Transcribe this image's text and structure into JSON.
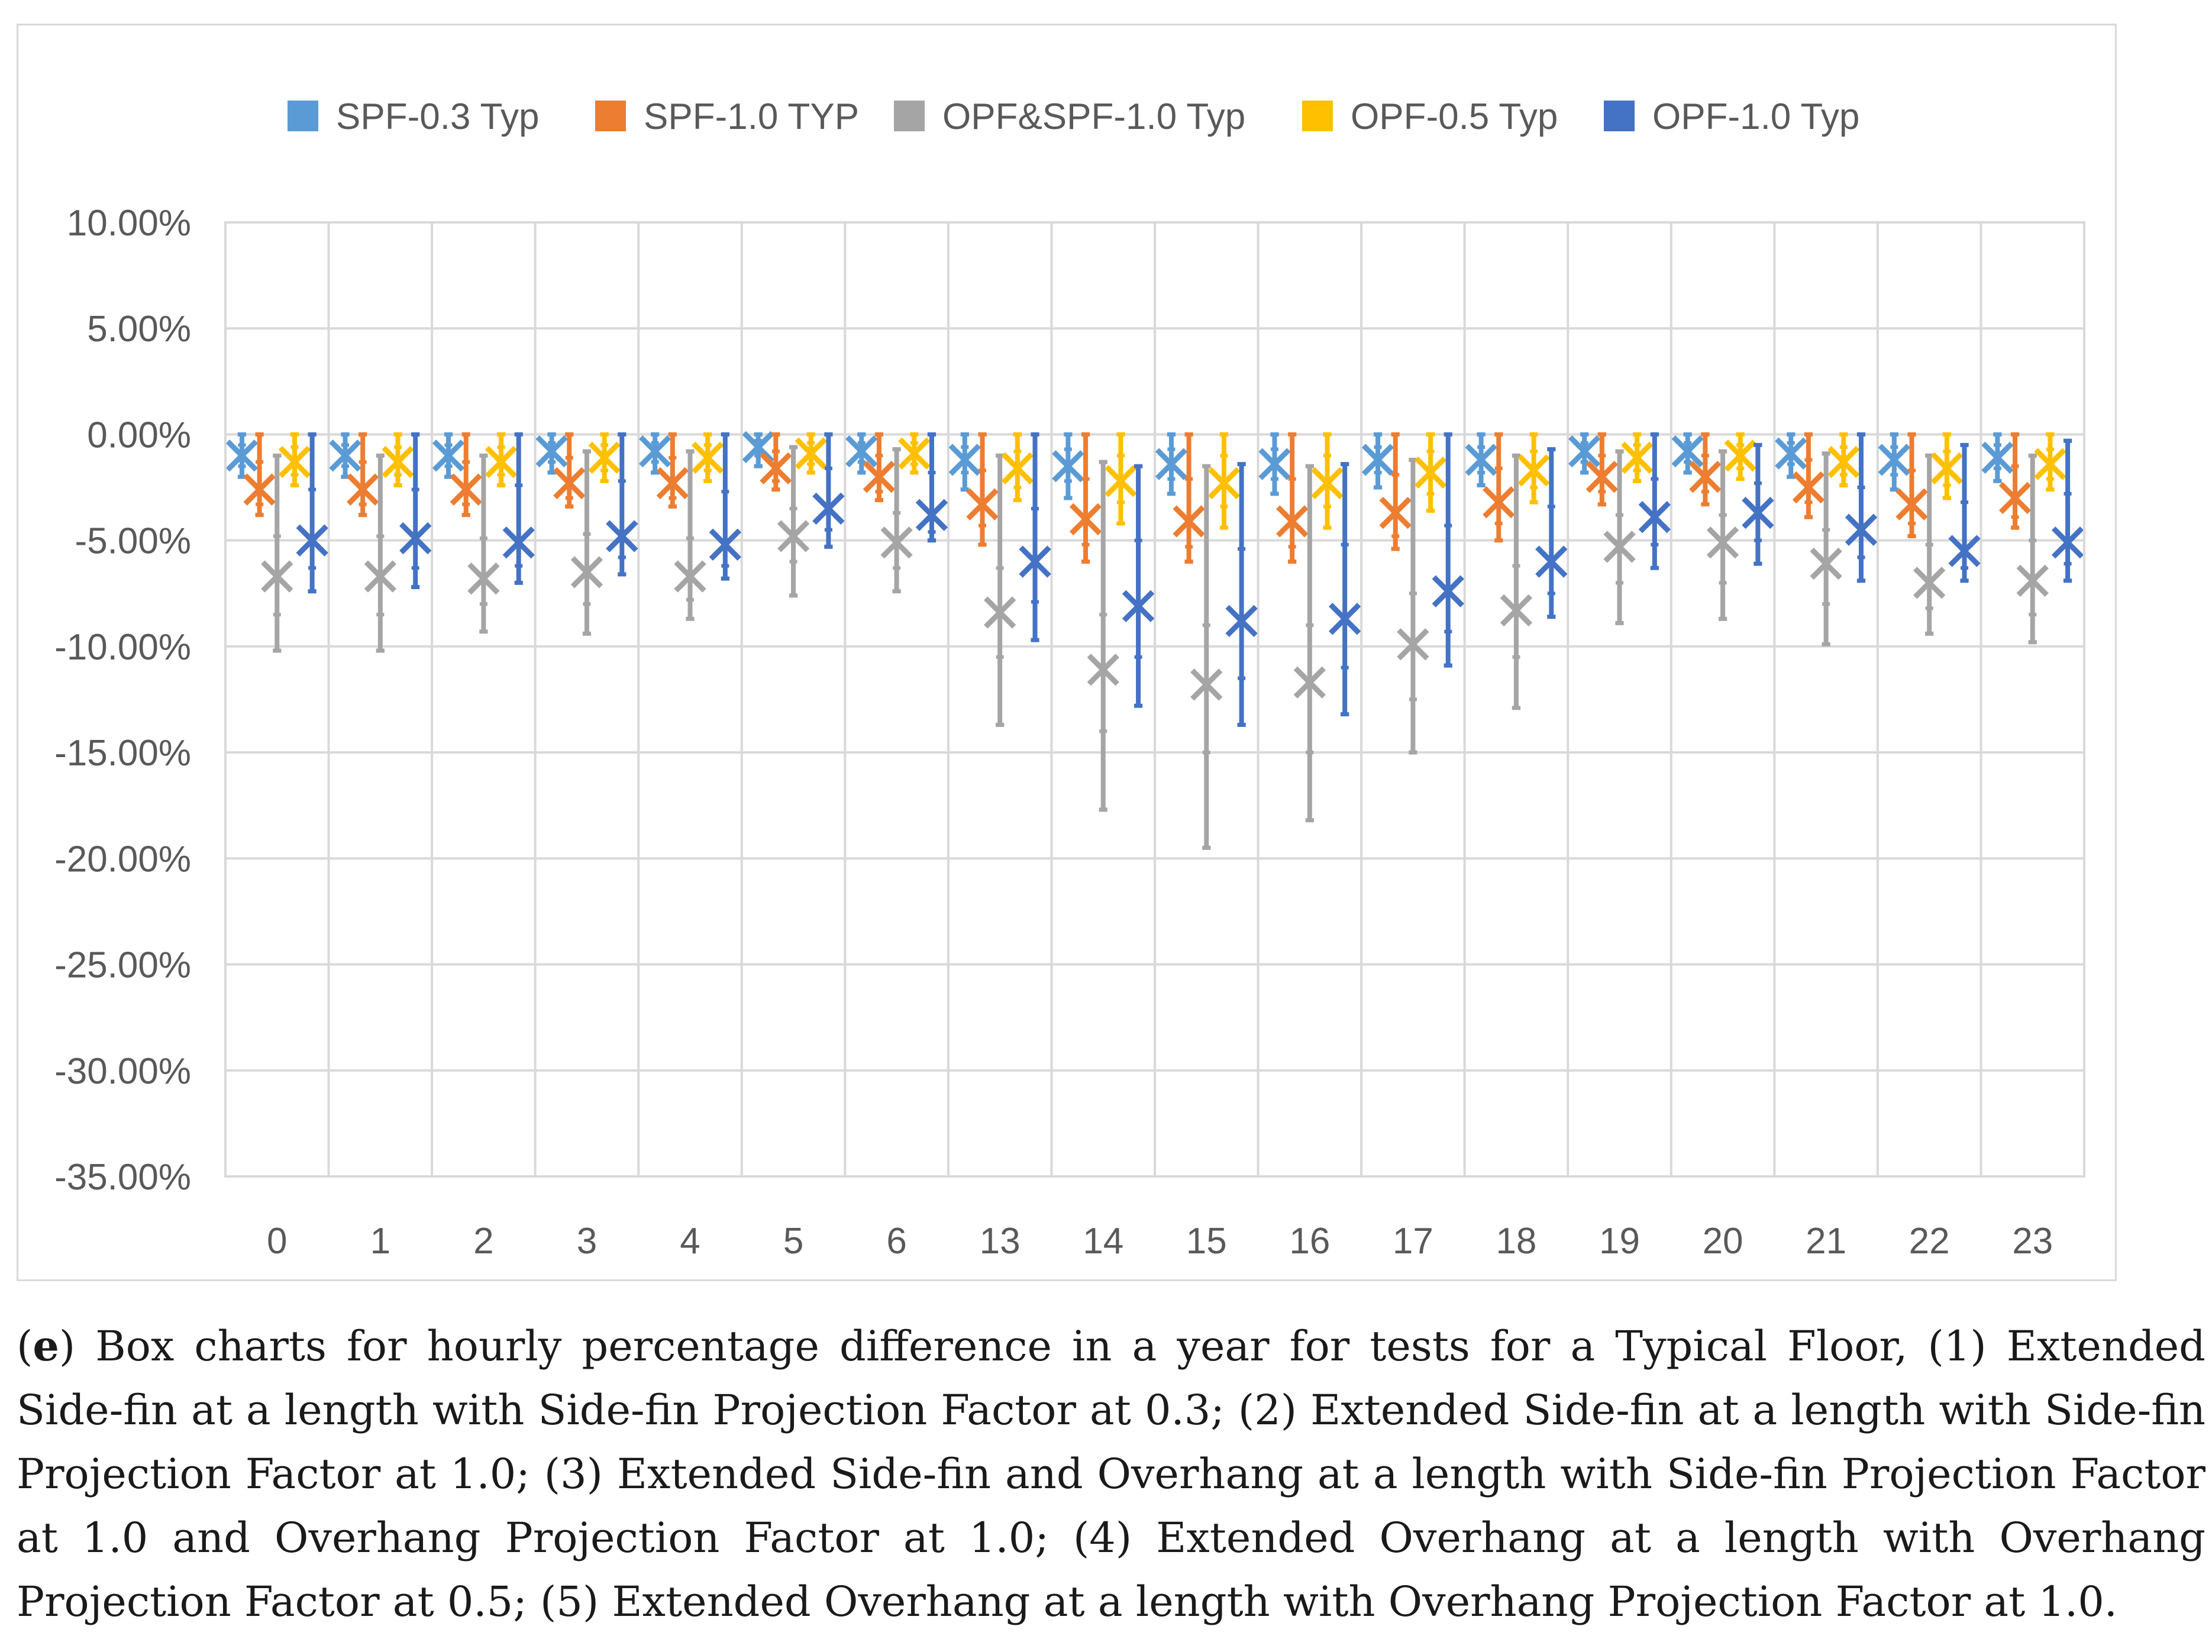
{
  "chart_data": {
    "type": "box",
    "title": "",
    "xlabel": "",
    "ylabel": "",
    "ylim": [
      -35,
      10
    ],
    "ytick_step": 5,
    "y_tick_labels": [
      "10.00%",
      "5.00%",
      "0.00%",
      "-5.00%",
      "-10.00%",
      "-15.00%",
      "-20.00%",
      "-25.00%",
      "-30.00%",
      "-35.00%"
    ],
    "grid": true,
    "legend_position": "top",
    "categories": [
      "0",
      "1",
      "2",
      "3",
      "4",
      "5",
      "6",
      "13",
      "14",
      "15",
      "16",
      "17",
      "18",
      "19",
      "20",
      "21",
      "22",
      "23"
    ],
    "series": [
      {
        "name": "SPF-0.3 Typ",
        "color": "#5b9bd5",
        "max": [
          0,
          0,
          0,
          0,
          0,
          0,
          0,
          0,
          0,
          0,
          0,
          0,
          0,
          0,
          0,
          0,
          0,
          0
        ],
        "q3": [
          -0.5,
          -0.5,
          -0.5,
          -0.4,
          -0.4,
          -0.3,
          -0.4,
          -0.6,
          -0.7,
          -0.7,
          -0.7,
          -0.6,
          -0.6,
          -0.4,
          -0.4,
          -0.4,
          -0.6,
          -0.5
        ],
        "median": [
          -1.0,
          -1.0,
          -1.0,
          -0.8,
          -0.8,
          -0.6,
          -0.8,
          -1.2,
          -1.4,
          -1.4,
          -1.4,
          -1.2,
          -1.2,
          -0.8,
          -0.8,
          -0.8,
          -1.2,
          -1.0
        ],
        "mean": [
          -1.0,
          -1.0,
          -1.0,
          -0.8,
          -0.8,
          -0.6,
          -0.8,
          -1.2,
          -1.5,
          -1.4,
          -1.4,
          -1.2,
          -1.2,
          -0.8,
          -0.8,
          -0.9,
          -1.2,
          -1.1
        ],
        "q1": [
          -1.5,
          -1.5,
          -1.5,
          -1.3,
          -1.3,
          -1.0,
          -1.3,
          -1.8,
          -2.2,
          -2.1,
          -2.1,
          -1.8,
          -1.8,
          -1.3,
          -1.3,
          -1.4,
          -1.9,
          -1.6
        ],
        "min": [
          -2.0,
          -2.0,
          -2.0,
          -1.8,
          -1.8,
          -1.5,
          -1.8,
          -2.6,
          -3.0,
          -2.8,
          -2.8,
          -2.5,
          -2.4,
          -1.8,
          -1.8,
          -2.0,
          -2.6,
          -2.2
        ]
      },
      {
        "name": "SPF-1.0 TYP",
        "color": "#ed7d31",
        "max": [
          0,
          0,
          0,
          0,
          0,
          0,
          0,
          0,
          0,
          0,
          0,
          0,
          0,
          0,
          0,
          0,
          0,
          0
        ],
        "q3": [
          -1.3,
          -1.3,
          -1.3,
          -1.1,
          -1.1,
          -0.8,
          -1.0,
          -1.7,
          -2.1,
          -2.1,
          -2.1,
          -1.9,
          -1.6,
          -1.0,
          -1.0,
          -1.2,
          -1.7,
          -1.5
        ],
        "median": [
          -2.5,
          -2.5,
          -2.5,
          -2.2,
          -2.2,
          -1.6,
          -2.0,
          -3.2,
          -4.0,
          -4.0,
          -4.1,
          -3.6,
          -3.1,
          -2.0,
          -2.0,
          -2.4,
          -3.2,
          -3.0
        ],
        "mean": [
          -2.6,
          -2.6,
          -2.6,
          -2.3,
          -2.3,
          -1.6,
          -2.0,
          -3.3,
          -4.0,
          -4.1,
          -4.1,
          -3.7,
          -3.2,
          -2.0,
          -2.0,
          -2.5,
          -3.3,
          -3.0
        ],
        "q1": [
          -3.3,
          -3.3,
          -3.3,
          -3.0,
          -3.0,
          -2.2,
          -2.7,
          -4.3,
          -5.2,
          -5.3,
          -5.3,
          -4.8,
          -4.2,
          -2.7,
          -2.7,
          -3.2,
          -4.2,
          -3.9
        ],
        "min": [
          -3.8,
          -3.8,
          -3.8,
          -3.4,
          -3.4,
          -2.6,
          -3.1,
          -5.2,
          -6.0,
          -6.0,
          -6.0,
          -5.4,
          -5.0,
          -3.3,
          -3.3,
          -3.9,
          -4.8,
          -4.4
        ]
      },
      {
        "name": "OPF&SPF-1.0 Typ",
        "color": "#a5a5a5",
        "max": [
          -1.0,
          -1.0,
          -1.0,
          -0.8,
          -0.8,
          -0.6,
          -0.7,
          -1.0,
          -1.3,
          -1.5,
          -1.5,
          -1.2,
          -1.0,
          -0.8,
          -0.8,
          -0.9,
          -1.0,
          -1.0
        ],
        "q3": [
          -4.8,
          -4.8,
          -4.9,
          -4.7,
          -4.9,
          -3.5,
          -3.7,
          -6.3,
          -8.5,
          -9.0,
          -9.0,
          -7.5,
          -6.2,
          -3.8,
          -3.8,
          -4.5,
          -5.2,
          -5.0
        ],
        "median": [
          -6.5,
          -6.5,
          -6.6,
          -6.3,
          -6.6,
          -4.7,
          -5.0,
          -8.3,
          -11.0,
          -11.6,
          -11.7,
          -9.8,
          -8.2,
          -5.2,
          -5.0,
          -6.0,
          -6.9,
          -6.8
        ],
        "mean": [
          -6.7,
          -6.7,
          -6.8,
          -6.5,
          -6.7,
          -4.8,
          -5.1,
          -8.4,
          -11.1,
          -11.8,
          -11.7,
          -9.9,
          -8.3,
          -5.3,
          -5.1,
          -6.1,
          -7.0,
          -6.9
        ],
        "q1": [
          -8.5,
          -8.5,
          -8.0,
          -8.0,
          -7.8,
          -6.0,
          -6.3,
          -10.5,
          -14.0,
          -15.0,
          -15.0,
          -12.5,
          -10.5,
          -7.0,
          -7.0,
          -8.0,
          -8.2,
          -8.5
        ],
        "min": [
          -10.2,
          -10.2,
          -9.3,
          -9.4,
          -8.7,
          -7.6,
          -7.4,
          -13.7,
          -17.7,
          -19.5,
          -18.2,
          -15.0,
          -12.9,
          -8.9,
          -8.7,
          -9.9,
          -9.4,
          -9.8
        ]
      },
      {
        "name": "OPF-0.5 Typ",
        "color": "#ffc000",
        "max": [
          0,
          0,
          0,
          0,
          0,
          0,
          0,
          0,
          0,
          0,
          0,
          0,
          0,
          0,
          0,
          0,
          0,
          0
        ],
        "q3": [
          -0.6,
          -0.6,
          -0.6,
          -0.5,
          -0.5,
          -0.4,
          -0.4,
          -0.8,
          -1.0,
          -1.0,
          -1.0,
          -0.8,
          -0.8,
          -0.5,
          -0.5,
          -0.6,
          -0.8,
          -0.7
        ],
        "median": [
          -1.2,
          -1.2,
          -1.2,
          -1.1,
          -1.1,
          -0.9,
          -0.9,
          -1.6,
          -2.1,
          -2.2,
          -2.2,
          -1.8,
          -1.6,
          -1.1,
          -1.0,
          -1.2,
          -1.6,
          -1.4
        ],
        "mean": [
          -1.3,
          -1.3,
          -1.3,
          -1.1,
          -1.1,
          -0.9,
          -0.9,
          -1.6,
          -2.2,
          -2.3,
          -2.3,
          -1.8,
          -1.7,
          -1.1,
          -1.0,
          -1.3,
          -1.6,
          -1.4
        ],
        "q1": [
          -1.9,
          -1.9,
          -1.9,
          -1.7,
          -1.7,
          -1.4,
          -1.4,
          -2.5,
          -3.2,
          -3.4,
          -3.4,
          -2.8,
          -2.5,
          -1.7,
          -1.6,
          -1.9,
          -2.4,
          -2.1
        ],
        "min": [
          -2.4,
          -2.4,
          -2.4,
          -2.2,
          -2.2,
          -1.8,
          -1.8,
          -3.1,
          -4.2,
          -4.4,
          -4.4,
          -3.6,
          -3.2,
          -2.2,
          -2.1,
          -2.4,
          -3.0,
          -2.6
        ]
      },
      {
        "name": "OPF-1.0 Typ",
        "color": "#4472c4",
        "max": [
          0,
          0,
          0,
          0,
          0,
          0,
          0,
          0,
          -1.5,
          -1.4,
          -1.4,
          0,
          -0.7,
          0,
          -0.5,
          0,
          -0.5,
          -0.3
        ],
        "q3": [
          -2.6,
          -2.6,
          -2.4,
          -2.2,
          -2.7,
          -1.6,
          -1.8,
          -3.5,
          -5.0,
          -5.4,
          -5.2,
          -4.3,
          -3.4,
          -2.1,
          -2.3,
          -2.5,
          -3.2,
          -2.8
        ],
        "median": [
          -4.8,
          -4.8,
          -5.0,
          -4.6,
          -5.1,
          -3.4,
          -3.6,
          -5.8,
          -7.9,
          -8.6,
          -8.6,
          -7.2,
          -5.9,
          -3.8,
          -3.6,
          -4.3,
          -5.3,
          -5.0
        ],
        "mean": [
          -5.0,
          -4.9,
          -5.1,
          -4.8,
          -5.2,
          -3.5,
          -3.8,
          -6.0,
          -8.1,
          -8.8,
          -8.7,
          -7.4,
          -6.0,
          -3.9,
          -3.7,
          -4.5,
          -5.5,
          -5.1
        ],
        "q1": [
          -6.3,
          -6.3,
          -6.2,
          -5.8,
          -6.2,
          -4.5,
          -4.6,
          -7.9,
          -10.5,
          -11.5,
          -11.0,
          -9.3,
          -7.5,
          -5.2,
          -5.0,
          -5.8,
          -6.3,
          -6.1
        ],
        "min": [
          -7.4,
          -7.2,
          -7.0,
          -6.6,
          -6.8,
          -5.3,
          -5.0,
          -9.7,
          -12.8,
          -13.7,
          -13.2,
          -10.9,
          -8.6,
          -6.3,
          -6.1,
          -6.9,
          -6.9,
          -6.9
        ]
      }
    ]
  },
  "caption": {
    "label": "e",
    "text": " Box charts for hourly percentage difference in a year for tests for a Typical Floor, (1) Extended Side-fin at a length with Side-fin Projection Factor at 0.3; (2) Extended Side-fin at a length with Side-fin Projection Factor at 1.0; (3) Extended Side-fin and Overhang at a length with Side-fin Projection Factor at 1.0 and Overhang Projection Factor at 1.0; (4) Extended Overhang at a length with Overhang Projection Factor at 0.5; (5) Extended Overhang at a length with Overhang Projection Factor at 1.0."
  }
}
